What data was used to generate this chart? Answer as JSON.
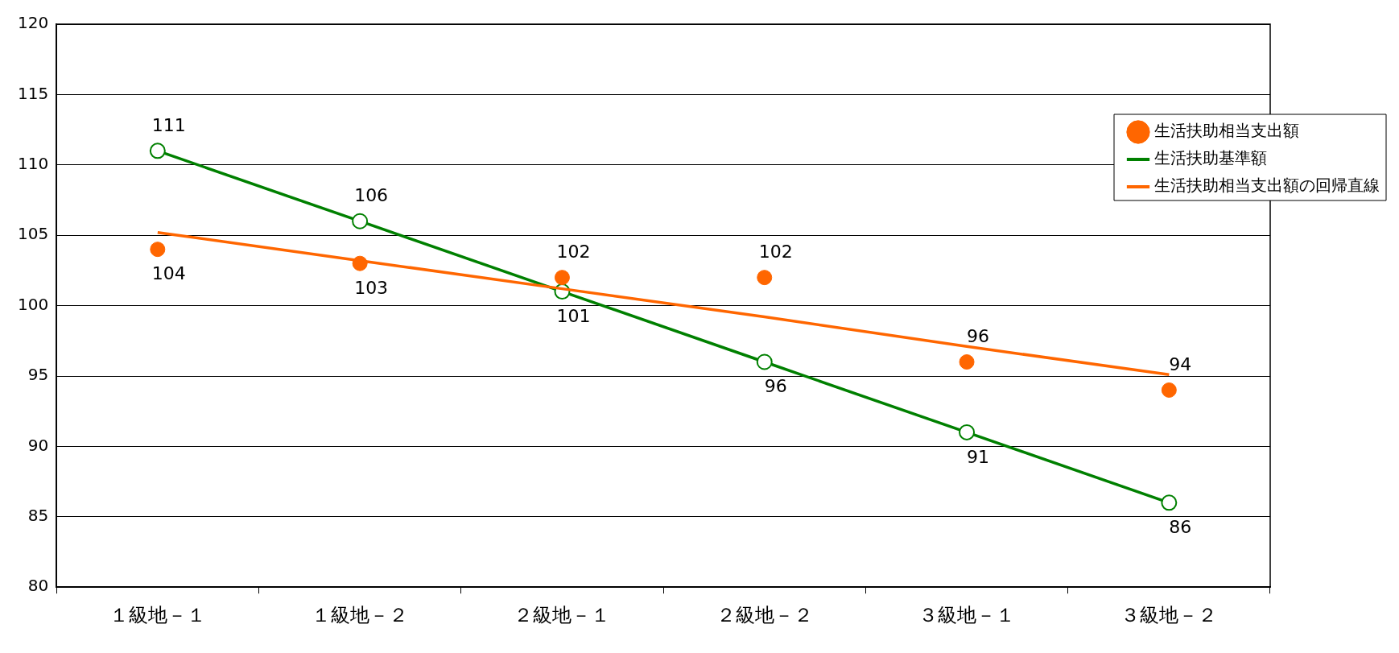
{
  "chart_data": {
    "type": "line",
    "categories": [
      "１級地－１",
      "１級地－２",
      "２級地－１",
      "２級地－２",
      "３級地－１",
      "３級地－２"
    ],
    "ylim": [
      80,
      120
    ],
    "yticks": [
      80,
      85,
      90,
      95,
      100,
      105,
      110,
      115,
      120
    ],
    "grid": "y",
    "legend": "top right",
    "line_style": "solid",
    "series": [
      {
        "name": "生活扶助相当支出額",
        "type": "scatter",
        "color": "#ff6600",
        "marker": "circle",
        "values": [
          104,
          103,
          102,
          102,
          96,
          94
        ],
        "value_labels": [
          "104",
          "103",
          "102",
          "102",
          "96",
          "94"
        ]
      },
      {
        "name": "生活扶助基準額",
        "type": "line",
        "color": "#008000",
        "marker": "circle",
        "values": [
          111,
          106,
          101,
          96,
          91,
          86
        ],
        "value_labels": [
          "111",
          "106",
          "101",
          "96",
          "91",
          "86"
        ]
      },
      {
        "name": "生活扶助相当支出額の回帰直線",
        "type": "line",
        "color": "#ff6600",
        "marker": "none",
        "values": [
          105.2,
          103.2,
          101.2,
          99.2,
          97.1,
          95.1
        ]
      }
    ]
  }
}
